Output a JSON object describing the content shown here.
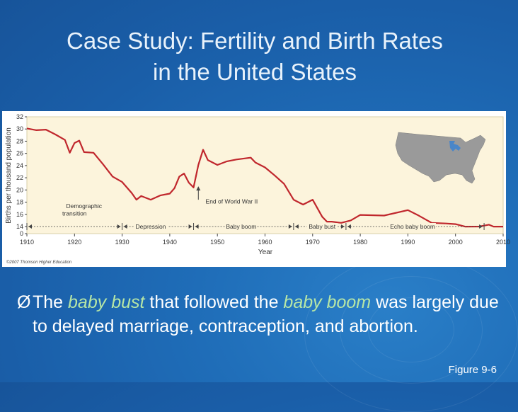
{
  "slide": {
    "title_line1": "Case Study: Fertility and Birth Rates",
    "title_line2": "in the United States",
    "bullet": {
      "arrow": "Ø",
      "part1": "The ",
      "em1": "baby bust",
      "part2": " that followed the ",
      "em2": "baby boom",
      "part3": " was largely due to delayed marriage, contraception, and abortion."
    },
    "figure_label": "Figure 9-6",
    "colors": {
      "background": "#1a5ea8",
      "plot_bg": "#fcf4dc",
      "line": "#c0272d",
      "emphasis_text": "#b6e6a6"
    }
  },
  "chart_data": {
    "type": "line",
    "xlabel": "Year",
    "ylabel": "Births per thousand population",
    "xlim": [
      1910,
      2010
    ],
    "ylim": [
      0,
      32
    ],
    "x_ticks": [
      1910,
      1920,
      1930,
      1940,
      1950,
      1960,
      1970,
      1980,
      1990,
      2000,
      2010
    ],
    "y_ticks": [
      0,
      14,
      16,
      18,
      20,
      22,
      24,
      26,
      28,
      30,
      32
    ],
    "series": [
      {
        "x": [
          1910,
          1912,
          1914,
          1916,
          1918,
          1919,
          1920,
          1921,
          1922,
          1924,
          1926,
          1928,
          1930,
          1932,
          1933,
          1934,
          1936,
          1938,
          1940,
          1941,
          1942,
          1943,
          1944,
          1945,
          1946,
          1947,
          1948,
          1950,
          1952,
          1954,
          1957,
          1958,
          1960,
          1962,
          1964,
          1966,
          1968,
          1970,
          1972,
          1973,
          1974,
          1976,
          1978,
          1980,
          1985,
          1990,
          1992,
          1995,
          1998,
          2000,
          2002,
          2005,
          2007,
          2008,
          2010
        ],
        "y": [
          30.1,
          29.8,
          29.9,
          29.1,
          28.2,
          26.1,
          27.7,
          28.1,
          26.2,
          26.1,
          24.2,
          22.2,
          21.3,
          19.5,
          18.4,
          19.0,
          18.4,
          19.1,
          19.4,
          20.3,
          22.2,
          22.7,
          21.2,
          20.4,
          24.1,
          26.6,
          24.9,
          24.1,
          24.7,
          25.0,
          25.3,
          24.5,
          23.7,
          22.4,
          21.0,
          18.4,
          17.6,
          18.4,
          15.6,
          14.8,
          14.8,
          14.6,
          15.0,
          15.9,
          15.8,
          16.7,
          15.9,
          14.6,
          14.5,
          14.4,
          13.9,
          14.0,
          14.3,
          13.9,
          13.8
        ]
      }
    ],
    "annotations": [
      {
        "text": "Demographic",
        "x": 1922,
        "y": 17
      },
      {
        "text": "transition",
        "x": 1920,
        "y": 15.8
      },
      {
        "text": "End of World War II",
        "x": 1953,
        "y": 17.8
      },
      {
        "text": "Depression",
        "x": 1936,
        "y": 14
      },
      {
        "text": "Baby boom",
        "x": 1955,
        "y": 14
      },
      {
        "text": "Baby bust",
        "x": 1972,
        "y": 14
      },
      {
        "text": "Echo baby boom",
        "x": 1991,
        "y": 14
      }
    ],
    "periods": [
      {
        "x0": 1910,
        "x1": 1930
      },
      {
        "x0": 1930,
        "x1": 1945
      },
      {
        "x0": 1945,
        "x1": 1966
      },
      {
        "x0": 1966,
        "x1": 1977
      },
      {
        "x0": 1977,
        "x1": 2006
      }
    ],
    "copyright": "©2007 Thomson Higher Education",
    "grid": false,
    "legend": "none"
  }
}
